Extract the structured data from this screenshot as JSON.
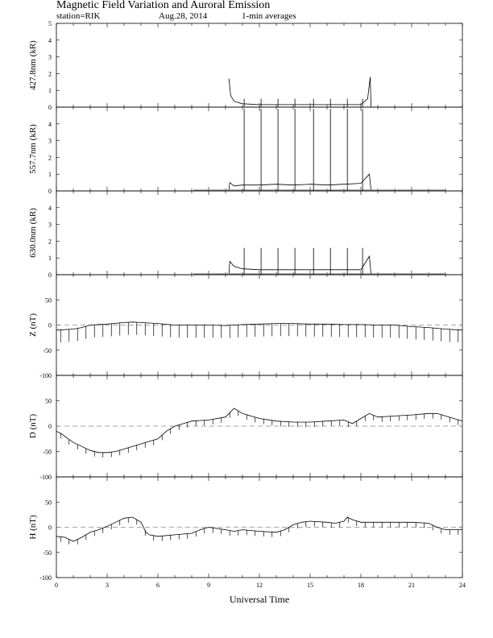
{
  "header": {
    "title": "Magnetic Field Variation and Auroral Emission",
    "station": "station=RIK",
    "date": "Aug.28, 2014",
    "averaging": "1-min averages"
  },
  "chart_data": [
    {
      "type": "line",
      "ylabel": "427.8nm (kR)",
      "xlim": [
        0,
        24
      ],
      "ylim": [
        0,
        5
      ],
      "yticks": [
        0,
        1,
        2,
        3,
        4,
        5
      ],
      "grid": false,
      "series": [
        {
          "x": [
            10.2,
            10.3,
            10.5,
            11,
            12,
            13,
            14,
            15,
            16,
            17,
            18,
            18.4,
            18.55,
            18.6
          ],
          "y": [
            1.7,
            0.7,
            0.35,
            0.2,
            0.15,
            0.15,
            0.15,
            0.15,
            0.15,
            0.15,
            0.15,
            0.5,
            1.8,
            0
          ]
        }
      ],
      "spikes": {
        "x": [
          11.1,
          12.1,
          13.1,
          14.1,
          15.2,
          16.2,
          17.2,
          18.1
        ],
        "y": [
          0.5,
          0.5,
          0.5,
          0.5,
          0.5,
          0.5,
          0.5,
          0.5
        ]
      }
    },
    {
      "type": "line",
      "ylabel": "557.7nm (kR)",
      "xlim": [
        0,
        24
      ],
      "ylim": [
        0,
        5
      ],
      "yticks": [
        0,
        1,
        2,
        3,
        4
      ],
      "grid": false,
      "series": [
        {
          "x": [
            8.1,
            10.2,
            10.25,
            10.5,
            11,
            12,
            13,
            14,
            15,
            16,
            17,
            18,
            18.5,
            18.6,
            23
          ],
          "y": [
            0.05,
            0.05,
            0.5,
            0.3,
            0.35,
            0.35,
            0.4,
            0.35,
            0.4,
            0.35,
            0.4,
            0.45,
            1.0,
            0.05,
            0.05
          ]
        }
      ],
      "spikes": {
        "x": [
          11.1,
          12.1,
          13.1,
          14.1,
          15.2,
          16.2,
          17.2,
          18.1
        ],
        "y": [
          4.9,
          4.9,
          4.9,
          4.9,
          4.9,
          4.9,
          4.9,
          4.9
        ]
      }
    },
    {
      "type": "line",
      "ylabel": "630.0nm (kR)",
      "xlim": [
        0,
        24
      ],
      "ylim": [
        0,
        5
      ],
      "yticks": [
        0,
        1,
        2,
        3,
        4
      ],
      "grid": false,
      "series": [
        {
          "x": [
            8.1,
            10.2,
            10.25,
            10.5,
            11,
            12,
            13,
            14,
            15,
            16,
            17,
            18,
            18.5,
            18.6,
            23
          ],
          "y": [
            0.05,
            0.05,
            0.8,
            0.5,
            0.35,
            0.3,
            0.3,
            0.3,
            0.3,
            0.3,
            0.3,
            0.3,
            1.1,
            0.05,
            0.05
          ]
        }
      ],
      "spikes": {
        "x": [
          11.1,
          12.1,
          13.1,
          14.1,
          15.2,
          16.2,
          17.2,
          18.1
        ],
        "y": [
          1.6,
          1.6,
          1.6,
          1.6,
          1.6,
          1.6,
          1.6,
          1.6
        ]
      }
    },
    {
      "type": "line",
      "ylabel": "Z (nT)",
      "xlim": [
        0,
        24
      ],
      "ylim": [
        -100,
        100
      ],
      "yticks": [
        -100,
        -50,
        0,
        50
      ],
      "grid": false,
      "zero_line": "dashed",
      "series": [
        {
          "x": [
            0,
            1,
            1.5,
            2,
            3,
            4,
            4.5,
            5,
            6,
            7,
            8,
            9,
            10,
            11,
            12,
            13,
            14,
            15,
            16,
            17,
            18,
            19,
            20,
            21,
            22,
            23,
            24
          ],
          "y": [
            -10,
            -8,
            -5,
            0,
            2,
            5,
            6,
            5,
            3,
            0,
            0,
            0,
            -1,
            1,
            2,
            3,
            3,
            2,
            2,
            1,
            1,
            0,
            0,
            -3,
            -5,
            -8,
            -10
          ]
        }
      ],
      "spike_depth": -25
    },
    {
      "type": "line",
      "ylabel": "D (nT)",
      "xlim": [
        0,
        24
      ],
      "ylim": [
        -100,
        100
      ],
      "yticks": [
        -100,
        -50,
        0,
        50
      ],
      "grid": false,
      "zero_line": "dashed",
      "series": [
        {
          "x": [
            0,
            0.3,
            0.7,
            1,
            1.5,
            2,
            2.5,
            3,
            3.5,
            4,
            4.5,
            5,
            5.5,
            6,
            6.5,
            7,
            7.5,
            8,
            9,
            10,
            10.5,
            11,
            12,
            13,
            14,
            15,
            16,
            17,
            17.5,
            18,
            18.5,
            19,
            20,
            21,
            22,
            22.5,
            23,
            24
          ],
          "y": [
            -10,
            -15,
            -25,
            -32,
            -40,
            -48,
            -52,
            -52,
            -50,
            -45,
            -40,
            -35,
            -30,
            -25,
            -10,
            0,
            5,
            10,
            12,
            18,
            35,
            25,
            15,
            10,
            8,
            8,
            10,
            12,
            5,
            15,
            25,
            18,
            20,
            22,
            25,
            25,
            20,
            10
          ]
        }
      ],
      "spike_depth": -10
    },
    {
      "type": "line",
      "ylabel": "H (nT)",
      "xlim": [
        0,
        24
      ],
      "ylim": [
        -100,
        100
      ],
      "yticks": [
        -100,
        -50,
        0,
        50
      ],
      "grid": false,
      "zero_line": "dashed",
      "xlabel": "Universal Time",
      "xticks": [
        0,
        3,
        6,
        9,
        12,
        15,
        18,
        21,
        24
      ],
      "series": [
        {
          "x": [
            0,
            0.5,
            1,
            1.5,
            2,
            2.5,
            3,
            3.5,
            4,
            4.5,
            5,
            5.3,
            5.5,
            6,
            7,
            8,
            8.5,
            9,
            10,
            10.5,
            11,
            12,
            13,
            13.5,
            14,
            14.5,
            15,
            16,
            16.5,
            17,
            17.2,
            17.5,
            18,
            19,
            20,
            21,
            22,
            22.5,
            23,
            24
          ],
          "y": [
            -18,
            -20,
            -28,
            -20,
            -10,
            -5,
            2,
            10,
            18,
            20,
            10,
            -10,
            -15,
            -18,
            -15,
            -12,
            -5,
            0,
            -5,
            -8,
            -5,
            -8,
            -10,
            -5,
            5,
            10,
            12,
            10,
            8,
            12,
            20,
            15,
            10,
            10,
            10,
            10,
            8,
            0,
            -5,
            -5
          ]
        }
      ],
      "spike_depth": -10
    }
  ]
}
